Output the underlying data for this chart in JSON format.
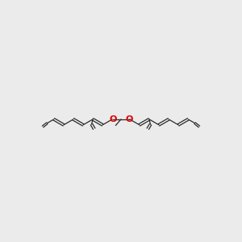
{
  "bg_color": "#ebebeb",
  "bond_color": "#2a2a2a",
  "oxygen_color": "#dd0000",
  "line_width": 0.9,
  "figsize": [
    3.0,
    3.0
  ],
  "dpi": 100,
  "xlim": [
    -14,
    14
  ],
  "ylim": [
    -5,
    5
  ]
}
